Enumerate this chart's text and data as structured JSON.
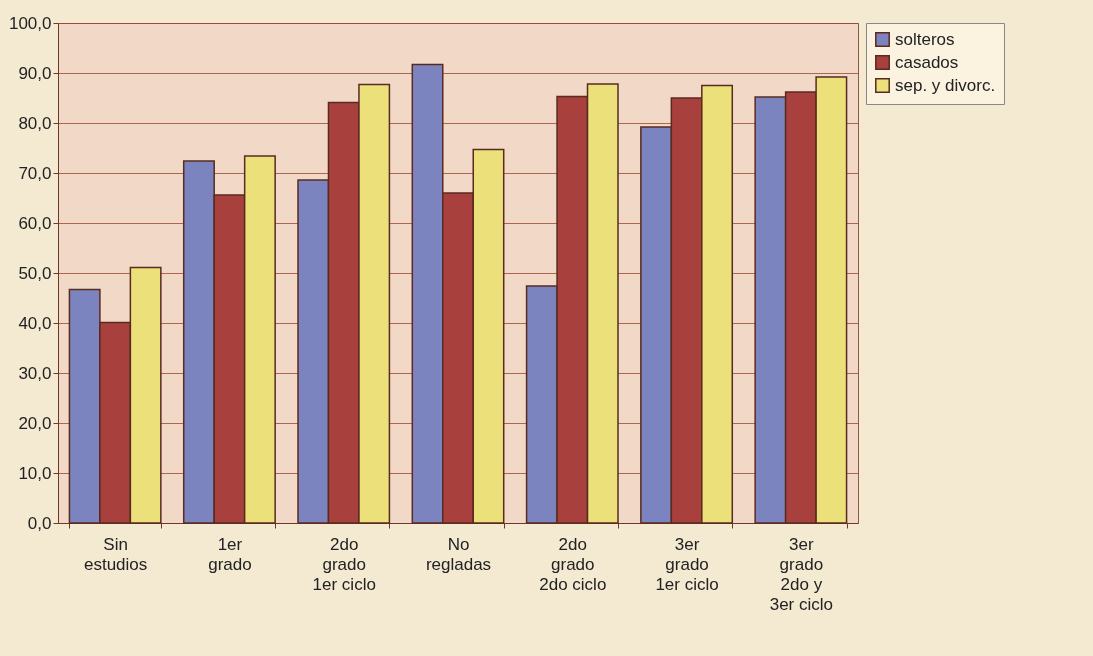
{
  "chart_data": {
    "type": "bar",
    "categories": [
      "Sin\nestudios",
      "1er\ngrado",
      "2do\ngrado\n1er ciclo",
      "No\nregladas",
      "2do\ngrado\n2do ciclo",
      "3er\ngrado\n1er ciclo",
      "3er\ngrado\n2do y\n3er ciclo"
    ],
    "series": [
      {
        "name": "solteros",
        "color": "#7b84bf",
        "values": [
          46.7,
          72.4,
          68.6,
          91.7,
          47.4,
          79.2,
          85.2
        ]
      },
      {
        "name": "casados",
        "color": "#a8403e",
        "values": [
          40.1,
          65.6,
          84.1,
          66.0,
          85.3,
          85.0,
          86.2
        ]
      },
      {
        "name": "sep. y divorc.",
        "color": "#ece07a",
        "values": [
          51.1,
          73.4,
          87.7,
          74.7,
          87.8,
          87.5,
          89.2
        ]
      }
    ],
    "ylim": [
      0,
      100
    ],
    "yticks": [
      {
        "value": 0,
        "label": "0,0"
      },
      {
        "value": 10,
        "label": "10,0"
      },
      {
        "value": 20,
        "label": "20,0"
      },
      {
        "value": 30,
        "label": "30,0"
      },
      {
        "value": 40,
        "label": "40,0"
      },
      {
        "value": 50,
        "label": "50,0"
      },
      {
        "value": 60,
        "label": "60,0"
      },
      {
        "value": 70,
        "label": "70,0"
      },
      {
        "value": 80,
        "label": "80,0"
      },
      {
        "value": 90,
        "label": "90,0"
      },
      {
        "value": 100,
        "label": "100,0"
      }
    ],
    "grid": "y",
    "legend": "right"
  }
}
